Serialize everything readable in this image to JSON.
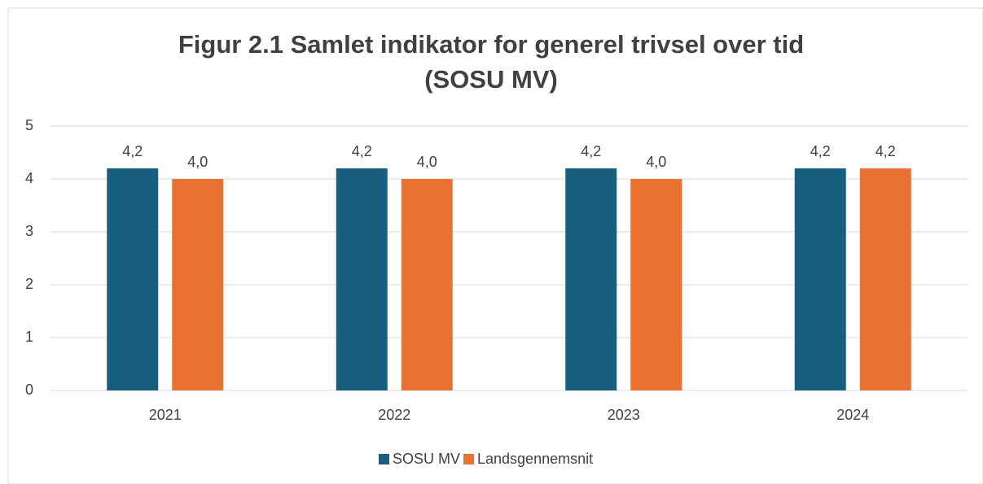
{
  "chart_data": {
    "type": "bar",
    "title": [
      "Figur 2.1 Samlet indikator for generel trivsel over tid",
      "(SOSU MV)"
    ],
    "categories": [
      "2021",
      "2022",
      "2023",
      "2024"
    ],
    "series": [
      {
        "name": "SOSU MV",
        "color": "#175e7f",
        "values": [
          4.2,
          4.2,
          4.2,
          4.2
        ],
        "value_labels": [
          "4,2",
          "4,2",
          "4,2",
          "4,2"
        ]
      },
      {
        "name": "Landsgennemsnit",
        "color": "#e97132",
        "values": [
          4.0,
          4.0,
          4.0,
          4.2
        ],
        "value_labels": [
          "4,0",
          "4,0",
          "4,0",
          "4,2"
        ]
      }
    ],
    "ylim": [
      0,
      5
    ],
    "yticks": [
      0,
      1,
      2,
      3,
      4,
      5
    ],
    "grid": true,
    "legend": "bottom"
  }
}
